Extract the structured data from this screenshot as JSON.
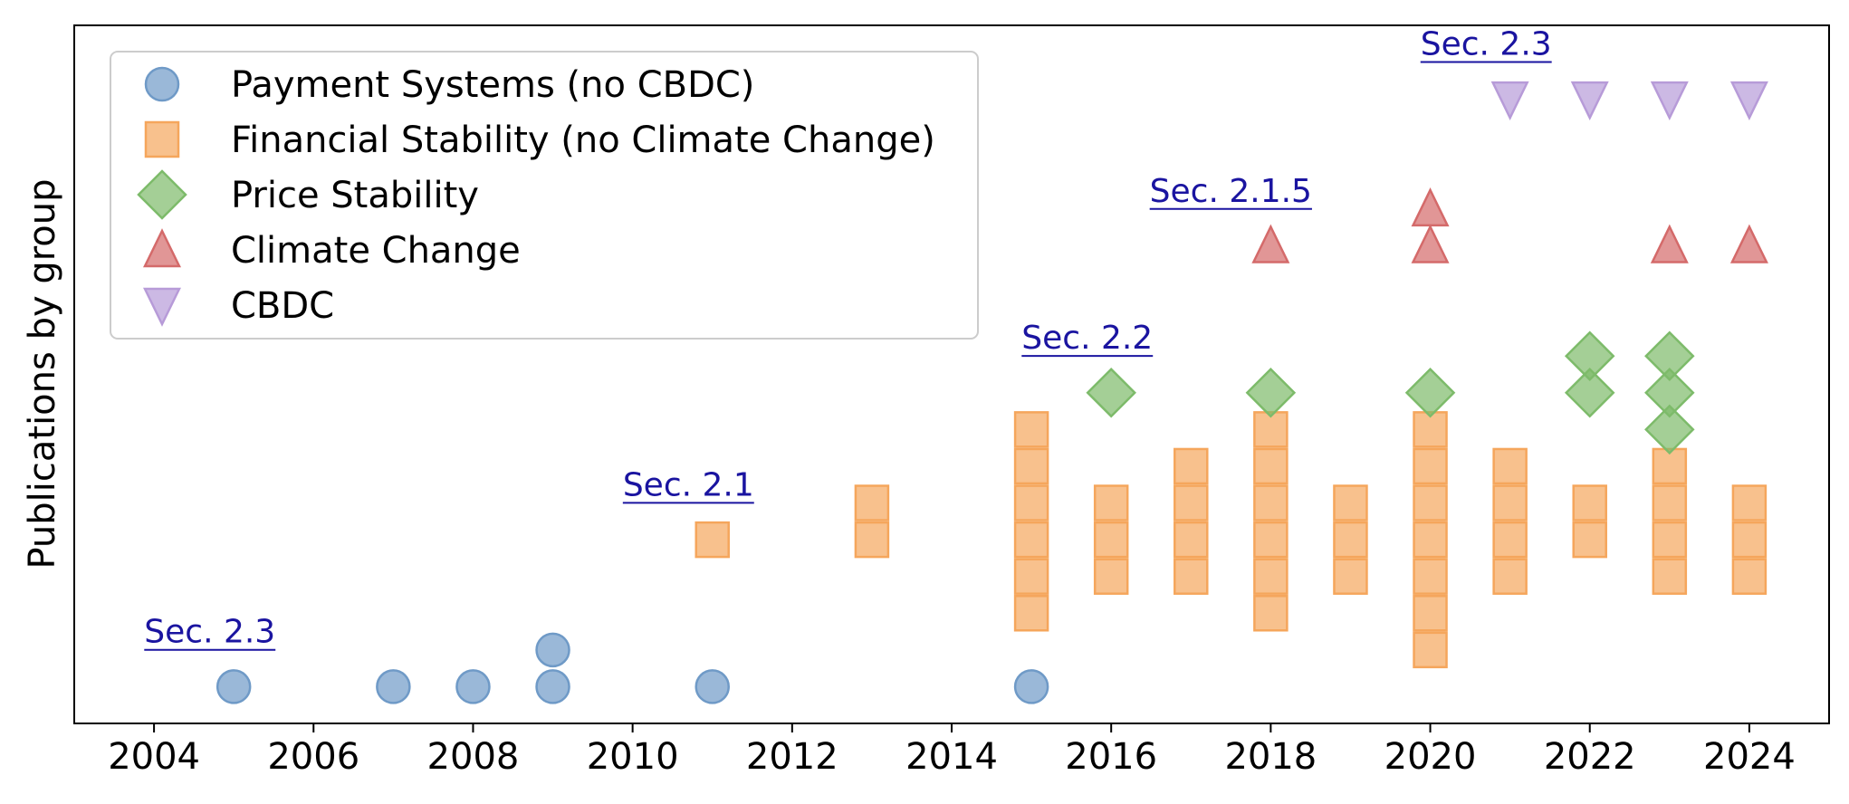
{
  "chart_data": {
    "type": "scatter",
    "title": "",
    "xlabel": "",
    "ylabel": "Publications by group",
    "xlim": [
      2003,
      2025
    ],
    "ylim": [
      0,
      19
    ],
    "xticks": [
      "2004",
      "2006",
      "2008",
      "2010",
      "2012",
      "2014",
      "2016",
      "2018",
      "2020",
      "2022",
      "2024"
    ],
    "grid": false,
    "legend_position": "upper-left",
    "series": [
      {
        "name": "Payment Systems (no CBDC)",
        "marker": "circle",
        "color": "#6f9ac7",
        "points": [
          {
            "x": 2005,
            "y": 1
          },
          {
            "x": 2007,
            "y": 1
          },
          {
            "x": 2008,
            "y": 1
          },
          {
            "x": 2009,
            "y": 1
          },
          {
            "x": 2009,
            "y": 2
          },
          {
            "x": 2011,
            "y": 1
          },
          {
            "x": 2015,
            "y": 1
          }
        ]
      },
      {
        "name": "Financial Stability (no Climate Change)",
        "marker": "square",
        "color": "#f5a65c",
        "points": [
          {
            "x": 2011,
            "y": 5
          },
          {
            "x": 2013,
            "y": 5
          },
          {
            "x": 2013,
            "y": 6
          },
          {
            "x": 2015,
            "y": 3
          },
          {
            "x": 2015,
            "y": 4
          },
          {
            "x": 2015,
            "y": 5
          },
          {
            "x": 2015,
            "y": 6
          },
          {
            "x": 2015,
            "y": 7
          },
          {
            "x": 2015,
            "y": 8
          },
          {
            "x": 2016,
            "y": 4
          },
          {
            "x": 2016,
            "y": 5
          },
          {
            "x": 2016,
            "y": 6
          },
          {
            "x": 2017,
            "y": 4
          },
          {
            "x": 2017,
            "y": 5
          },
          {
            "x": 2017,
            "y": 6
          },
          {
            "x": 2017,
            "y": 7
          },
          {
            "x": 2018,
            "y": 3
          },
          {
            "x": 2018,
            "y": 4
          },
          {
            "x": 2018,
            "y": 5
          },
          {
            "x": 2018,
            "y": 6
          },
          {
            "x": 2018,
            "y": 7
          },
          {
            "x": 2018,
            "y": 8
          },
          {
            "x": 2019,
            "y": 4
          },
          {
            "x": 2019,
            "y": 5
          },
          {
            "x": 2019,
            "y": 6
          },
          {
            "x": 2020,
            "y": 2
          },
          {
            "x": 2020,
            "y": 3
          },
          {
            "x": 2020,
            "y": 4
          },
          {
            "x": 2020,
            "y": 5
          },
          {
            "x": 2020,
            "y": 6
          },
          {
            "x": 2020,
            "y": 7
          },
          {
            "x": 2020,
            "y": 8
          },
          {
            "x": 2021,
            "y": 4
          },
          {
            "x": 2021,
            "y": 5
          },
          {
            "x": 2021,
            "y": 6
          },
          {
            "x": 2021,
            "y": 7
          },
          {
            "x": 2022,
            "y": 5
          },
          {
            "x": 2022,
            "y": 6
          },
          {
            "x": 2023,
            "y": 4
          },
          {
            "x": 2023,
            "y": 5
          },
          {
            "x": 2023,
            "y": 6
          },
          {
            "x": 2023,
            "y": 7
          },
          {
            "x": 2024,
            "y": 4
          },
          {
            "x": 2024,
            "y": 5
          },
          {
            "x": 2024,
            "y": 6
          }
        ]
      },
      {
        "name": "Price Stability",
        "marker": "diamond",
        "color": "#7dbb6a",
        "points": [
          {
            "x": 2016,
            "y": 9
          },
          {
            "x": 2018,
            "y": 9
          },
          {
            "x": 2020,
            "y": 9
          },
          {
            "x": 2022,
            "y": 9
          },
          {
            "x": 2022,
            "y": 10
          },
          {
            "x": 2023,
            "y": 8
          },
          {
            "x": 2023,
            "y": 9
          },
          {
            "x": 2023,
            "y": 10
          }
        ]
      },
      {
        "name": "Climate Change",
        "marker": "triangle-up",
        "color": "#d46a6a",
        "points": [
          {
            "x": 2018,
            "y": 13
          },
          {
            "x": 2020,
            "y": 13
          },
          {
            "x": 2020,
            "y": 14
          },
          {
            "x": 2023,
            "y": 13
          },
          {
            "x": 2024,
            "y": 13
          }
        ]
      },
      {
        "name": "CBDC",
        "marker": "triangle-down",
        "color": "#b79bd8",
        "points": [
          {
            "x": 2021,
            "y": 17
          },
          {
            "x": 2022,
            "y": 17
          },
          {
            "x": 2023,
            "y": 17
          },
          {
            "x": 2024,
            "y": 17
          }
        ]
      }
    ],
    "annotations": [
      {
        "text": "Sec. 2.3",
        "x": 2004.7,
        "y": 2.2
      },
      {
        "text": "Sec. 2.1",
        "x": 2010.7,
        "y": 6.2
      },
      {
        "text": "Sec. 2.2",
        "x": 2015.7,
        "y": 10.2
      },
      {
        "text": "Sec. 2.1.5",
        "x": 2017.5,
        "y": 14.2
      },
      {
        "text": "Sec. 2.3",
        "x": 2020.7,
        "y": 18.2
      }
    ]
  },
  "colors": {
    "annotation": "#1a14a0",
    "axis": "#000000",
    "legend_border": "#cccccc"
  }
}
